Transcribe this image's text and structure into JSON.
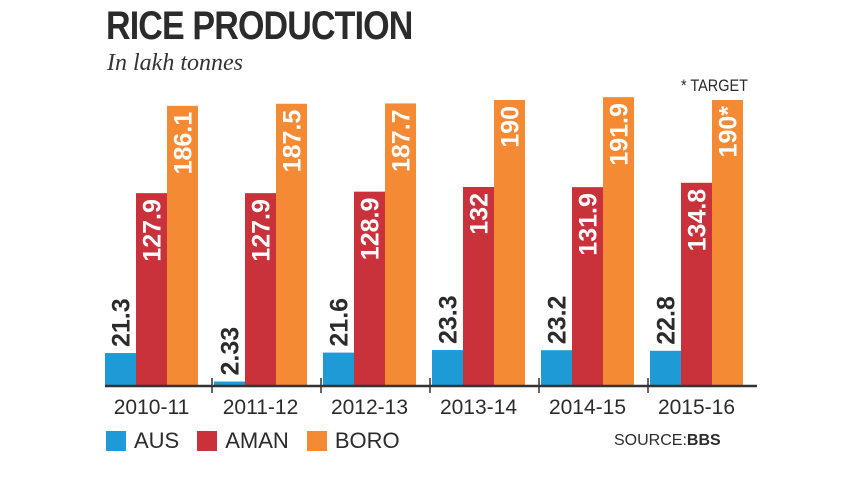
{
  "chart_data": {
    "type": "bar",
    "title": "RICE PRODUCTION",
    "subtitle": "In lakh tonnes",
    "categories": [
      "2010-11",
      "2011-12",
      "2012-13",
      "2013-14",
      "2014-15",
      "2015-16"
    ],
    "series": [
      {
        "name": "AUS",
        "color": "#1e9bd7",
        "values": [
          21.3,
          2.33,
          21.6,
          23.3,
          23.2,
          22.8
        ],
        "labels": [
          "21.3",
          "2.33",
          "21.6",
          "23.3",
          "23.2",
          "22.8"
        ]
      },
      {
        "name": "AMAN",
        "color": "#c9313b",
        "values": [
          127.9,
          127.9,
          128.9,
          132,
          131.9,
          134.8
        ],
        "labels": [
          "127.9",
          "127.9",
          "128.9",
          "132",
          "131.9",
          "134.8"
        ]
      },
      {
        "name": "BORO",
        "color": "#f58a35",
        "values": [
          186.1,
          187.5,
          187.7,
          190,
          191.9,
          190
        ],
        "labels": [
          "186.1",
          "187.5",
          "187.7",
          "190",
          "191.9",
          "190*"
        ]
      }
    ],
    "note": "* TARGET",
    "source_label": "SOURCE:",
    "source": "BBS",
    "ylim": [
      0,
      200
    ],
    "grid": false,
    "legend_position": "bottom-left"
  }
}
